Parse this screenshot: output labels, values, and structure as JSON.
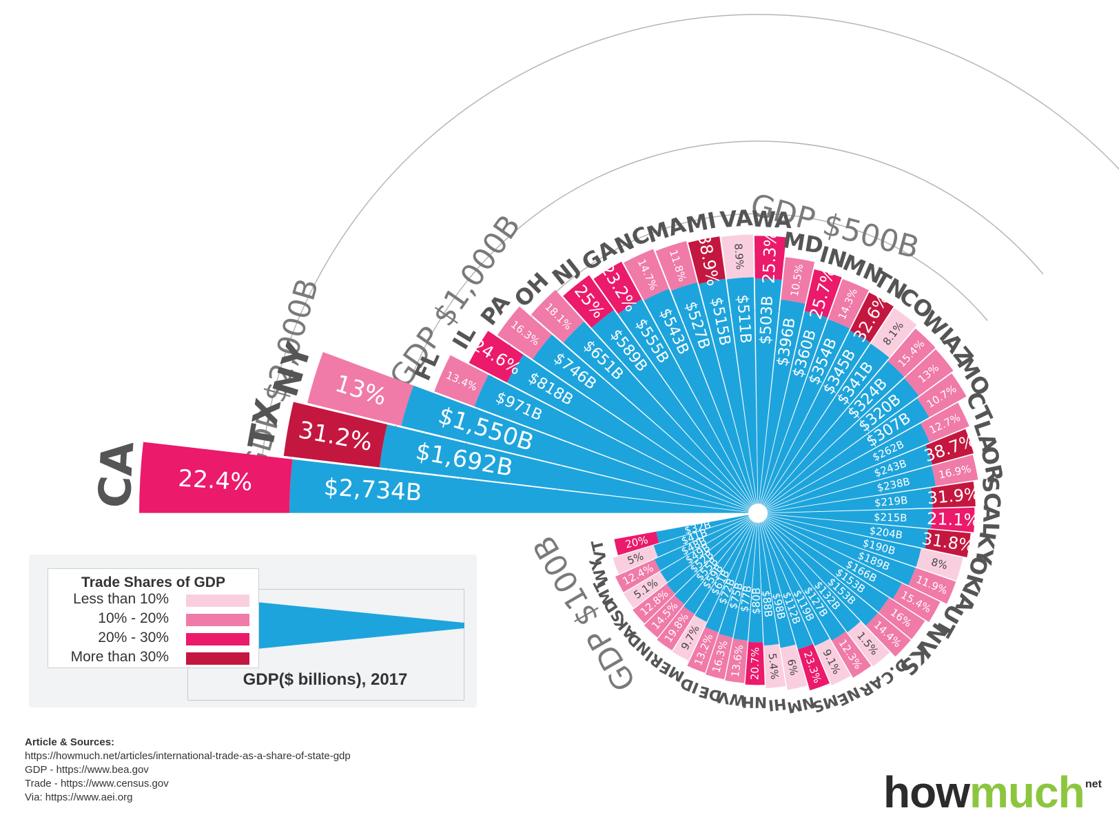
{
  "chart_data": {
    "type": "radial-bar",
    "title": "",
    "legend": {
      "title": "Trade Shares of GDP",
      "categories": [
        "Less than 10%",
        "10% - 20%",
        "20% - 30%",
        "More than 30%"
      ],
      "colors": [
        "#f9cfe0",
        "#f07aa8",
        "#eb1a6b",
        "#c4173f"
      ],
      "gdp_label": "GDP($ billions), 2017",
      "gdp_color": "#1ea4dc"
    },
    "rings": [
      {
        "value": 2000,
        "label": "GDP $2,000B"
      },
      {
        "value": 1000,
        "label": "GDP $1,000B"
      },
      {
        "value": 500,
        "label": "GDP $500B"
      },
      {
        "value": 100,
        "label": "GDP $100B"
      }
    ],
    "states": [
      {
        "state": "CA",
        "gdp": 2734,
        "gdp_label": "$2,734B",
        "trade": 22.4,
        "trade_label": "22.4%"
      },
      {
        "state": "TX",
        "gdp": 1692,
        "gdp_label": "$1,692B",
        "trade": 31.2,
        "trade_label": "31.2%"
      },
      {
        "state": "NY",
        "gdp": 1550,
        "gdp_label": "$1,550B",
        "trade": 13,
        "trade_label": "13%"
      },
      {
        "state": "FL",
        "gdp": 971,
        "gdp_label": "$971B",
        "trade": 13.4,
        "trade_label": "13.4%"
      },
      {
        "state": "IL",
        "gdp": 818,
        "gdp_label": "$818B",
        "trade": 24.6,
        "trade_label": "24.6%"
      },
      {
        "state": "PA",
        "gdp": 746,
        "gdp_label": "$746B",
        "trade": 16.3,
        "trade_label": "16.3%"
      },
      {
        "state": "OH",
        "gdp": 651,
        "gdp_label": "$651B",
        "trade": 18.1,
        "trade_label": "18.1%"
      },
      {
        "state": "NJ",
        "gdp": 589,
        "gdp_label": "$589B",
        "trade": 25,
        "trade_label": "25%"
      },
      {
        "state": "GA",
        "gdp": 555,
        "gdp_label": "$555B",
        "trade": 23.2,
        "trade_label": "23.2%"
      },
      {
        "state": "NC",
        "gdp": 543,
        "gdp_label": "$543B",
        "trade": 14.7,
        "trade_label": "14.7%"
      },
      {
        "state": "MA",
        "gdp": 527,
        "gdp_label": "$527B",
        "trade": 11.8,
        "trade_label": "11.8%"
      },
      {
        "state": "MI",
        "gdp": 515,
        "gdp_label": "$515B",
        "trade": 38.9,
        "trade_label": "38.9%"
      },
      {
        "state": "VA",
        "gdp": 511,
        "gdp_label": "$511B",
        "trade": 8.9,
        "trade_label": "8.9%"
      },
      {
        "state": "WA",
        "gdp": 503,
        "gdp_label": "$503B",
        "trade": 25.3,
        "trade_label": "25.3%"
      },
      {
        "state": "MD",
        "gdp": 396,
        "gdp_label": "$396B",
        "trade": 10.5,
        "trade_label": "10.5%"
      },
      {
        "state": "IN",
        "gdp": 360,
        "gdp_label": "$360B",
        "trade": 25.7,
        "trade_label": "25.7%"
      },
      {
        "state": "MN",
        "gdp": 354,
        "gdp_label": "$354B",
        "trade": 14.3,
        "trade_label": "14.3%"
      },
      {
        "state": "TN",
        "gdp": 345,
        "gdp_label": "$345B",
        "trade": 32.6,
        "trade_label": "32.6%"
      },
      {
        "state": "CO",
        "gdp": 341,
        "gdp_label": "$341B",
        "trade": 8.1,
        "trade_label": "8.1%"
      },
      {
        "state": "WI",
        "gdp": 324,
        "gdp_label": "$324B",
        "trade": 15.4,
        "trade_label": "15.4%"
      },
      {
        "state": "AZ",
        "gdp": 320,
        "gdp_label": "$320B",
        "trade": 13,
        "trade_label": "13%"
      },
      {
        "state": "MO",
        "gdp": 307,
        "gdp_label": "$307B",
        "trade": 10.7,
        "trade_label": "10.7%"
      },
      {
        "state": "CT",
        "gdp": 262,
        "gdp_label": "$262B",
        "trade": 12.7,
        "trade_label": "12.7%"
      },
      {
        "state": "LA",
        "gdp": 243,
        "gdp_label": "$243B",
        "trade": 38.7,
        "trade_label": "38.7%"
      },
      {
        "state": "OR",
        "gdp": 238,
        "gdp_label": "$238B",
        "trade": 16.9,
        "trade_label": "16.9%"
      },
      {
        "state": "SC",
        "gdp": 219,
        "gdp_label": "$219B",
        "trade": 31.9,
        "trade_label": "31.9%"
      },
      {
        "state": "AL",
        "gdp": 215,
        "gdp_label": "$215B",
        "trade": 21.1,
        "trade_label": "21.1%"
      },
      {
        "state": "KY",
        "gdp": 204,
        "gdp_label": "$204B",
        "trade": 31.8,
        "trade_label": "31.8%"
      },
      {
        "state": "OK",
        "gdp": 190,
        "gdp_label": "$190B",
        "trade": 8,
        "trade_label": "8%"
      },
      {
        "state": "IA",
        "gdp": 189,
        "gdp_label": "$189B",
        "trade": 11.9,
        "trade_label": "11.9%"
      },
      {
        "state": "UT",
        "gdp": 166,
        "gdp_label": "$166B",
        "trade": 15.4,
        "trade_label": "15.4%"
      },
      {
        "state": "NV",
        "gdp": 153,
        "gdp_label": "$153B",
        "trade": 16,
        "trade_label": "16%"
      },
      {
        "state": "KS",
        "gdp": 153,
        "gdp_label": "$153B",
        "trade": 14.4,
        "trade_label": "14.4%"
      },
      {
        "state": "D.C.",
        "gdp": 132,
        "gdp_label": "$132B",
        "trade": 1.5,
        "trade_label": "1.5%"
      },
      {
        "state": "AR",
        "gdp": 127,
        "gdp_label": "$127B",
        "trade": 12.3,
        "trade_label": "12.3%"
      },
      {
        "state": "NE",
        "gdp": 119,
        "gdp_label": "$119B",
        "trade": 9.1,
        "trade_label": "9.1%"
      },
      {
        "state": "MS",
        "gdp": 112,
        "gdp_label": "$112B",
        "trade": 23.3,
        "trade_label": "23.3%"
      },
      {
        "state": "NM",
        "gdp": 98,
        "gdp_label": "$98B",
        "trade": 6,
        "trade_label": "6%"
      },
      {
        "state": "HI",
        "gdp": 88,
        "gdp_label": "$88B",
        "trade": 5.4,
        "trade_label": "5.4%"
      },
      {
        "state": "NH",
        "gdp": 80,
        "gdp_label": "$80B",
        "trade": 20.7,
        "trade_label": "20.7%"
      },
      {
        "state": "WV",
        "gdp": 77,
        "gdp_label": "$77B",
        "trade": 13.6,
        "trade_label": "13.6%"
      },
      {
        "state": "DE",
        "gdp": 75,
        "gdp_label": "$75B",
        "trade": 16.3,
        "trade_label": "16.3%"
      },
      {
        "state": "ID",
        "gdp": 72,
        "gdp_label": "$72B",
        "trade": 13.2,
        "trade_label": "13.2%"
      },
      {
        "state": "ME",
        "gdp": 61,
        "gdp_label": "$61B",
        "trade": 9.7,
        "trade_label": "9.7%"
      },
      {
        "state": "RI",
        "gdp": 59,
        "gdp_label": "$59B",
        "trade": 19.8,
        "trade_label": "19.8%"
      },
      {
        "state": "ND",
        "gdp": 55,
        "gdp_label": "$55B",
        "trade": 14.5,
        "trade_label": "14.5%"
      },
      {
        "state": "AK",
        "gdp": 52,
        "gdp_label": "$52B",
        "trade": 12.8,
        "trade_label": "12.8%"
      },
      {
        "state": "SD",
        "gdp": 49,
        "gdp_label": "$49B",
        "trade": 5.1,
        "trade_label": "5.1%"
      },
      {
        "state": "MT",
        "gdp": 48,
        "gdp_label": "$48B",
        "trade": 12.4,
        "trade_label": "12.4%"
      },
      {
        "state": "WY",
        "gdp": 41,
        "gdp_label": "$41B",
        "trade": 5,
        "trade_label": "5%"
      },
      {
        "state": "VT",
        "gdp": 32,
        "gdp_label": "$32B",
        "trade": 20,
        "trade_label": "20%"
      }
    ]
  },
  "sources": {
    "heading": "Article & Sources:",
    "lines": [
      "https://howmuch.net/articles/international-trade-as-a-share-of-state-gdp",
      "GDP - https://www.bea.gov",
      "Trade - https://www.census.gov",
      "Via: https://www.aei.org"
    ]
  },
  "brand": {
    "how": "how",
    "much": "much",
    "net": "net"
  }
}
